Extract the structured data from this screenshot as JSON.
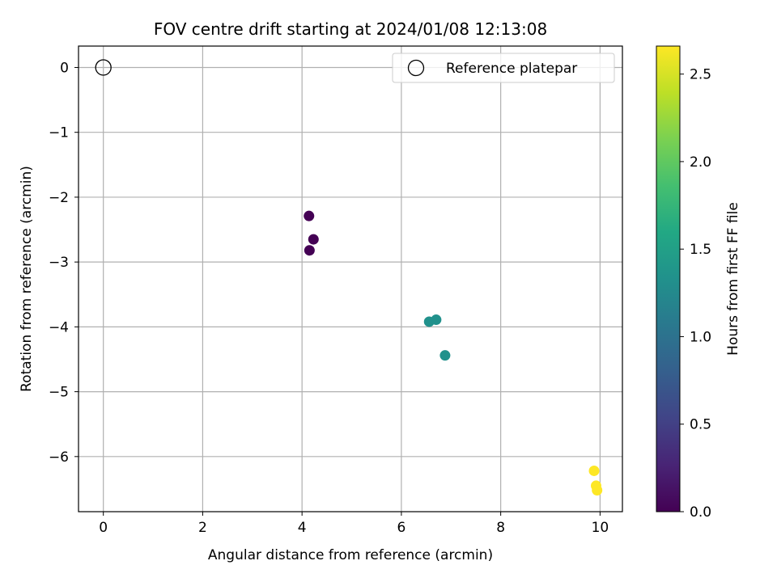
{
  "chart_data": {
    "type": "scatter",
    "title": "FOV centre drift starting at 2024/01/08 12:13:08",
    "xlabel": "Angular distance from reference (arcmin)",
    "ylabel": "Rotation from reference (arcmin)",
    "xlim": [
      -0.5,
      10.45
    ],
    "ylim": [
      -6.85,
      0.33
    ],
    "xticks": [
      0,
      2,
      4,
      6,
      8,
      10
    ],
    "yticks": [
      0,
      -1,
      -2,
      -3,
      -4,
      -5,
      -6
    ],
    "xtick_labels": [
      "0",
      "2",
      "4",
      "6",
      "8",
      "10"
    ],
    "ytick_labels": [
      "0",
      "−1",
      "−2",
      "−3",
      "−4",
      "−5",
      "−6"
    ],
    "grid": true,
    "legend_position": "top-right",
    "reference": {
      "label": "Reference platepar",
      "x": 0,
      "y": 0,
      "marker": "open-circle"
    },
    "points": [
      {
        "x": 4.14,
        "y": -2.29,
        "hours": 0.0
      },
      {
        "x": 4.23,
        "y": -2.65,
        "hours": 0.0
      },
      {
        "x": 4.15,
        "y": -2.82,
        "hours": 0.0
      },
      {
        "x": 6.56,
        "y": -3.92,
        "hours": 1.33
      },
      {
        "x": 6.7,
        "y": -3.89,
        "hours": 1.33
      },
      {
        "x": 6.88,
        "y": -4.44,
        "hours": 1.33
      },
      {
        "x": 9.88,
        "y": -6.22,
        "hours": 2.66
      },
      {
        "x": 9.92,
        "y": -6.45,
        "hours": 2.66
      },
      {
        "x": 9.94,
        "y": -6.52,
        "hours": 2.66
      }
    ],
    "colorbar": {
      "label": "Hours from first FF file",
      "colormap": "viridis",
      "range": [
        0,
        2.66
      ],
      "ticks": [
        0.0,
        0.5,
        1.0,
        1.5,
        2.0,
        2.5
      ],
      "tick_labels": [
        "0.0",
        "0.5",
        "1.0",
        "1.5",
        "2.0",
        "2.5"
      ]
    },
    "colors": {
      "grid": "#b0b0b0",
      "reference_marker": "#000000"
    }
  }
}
